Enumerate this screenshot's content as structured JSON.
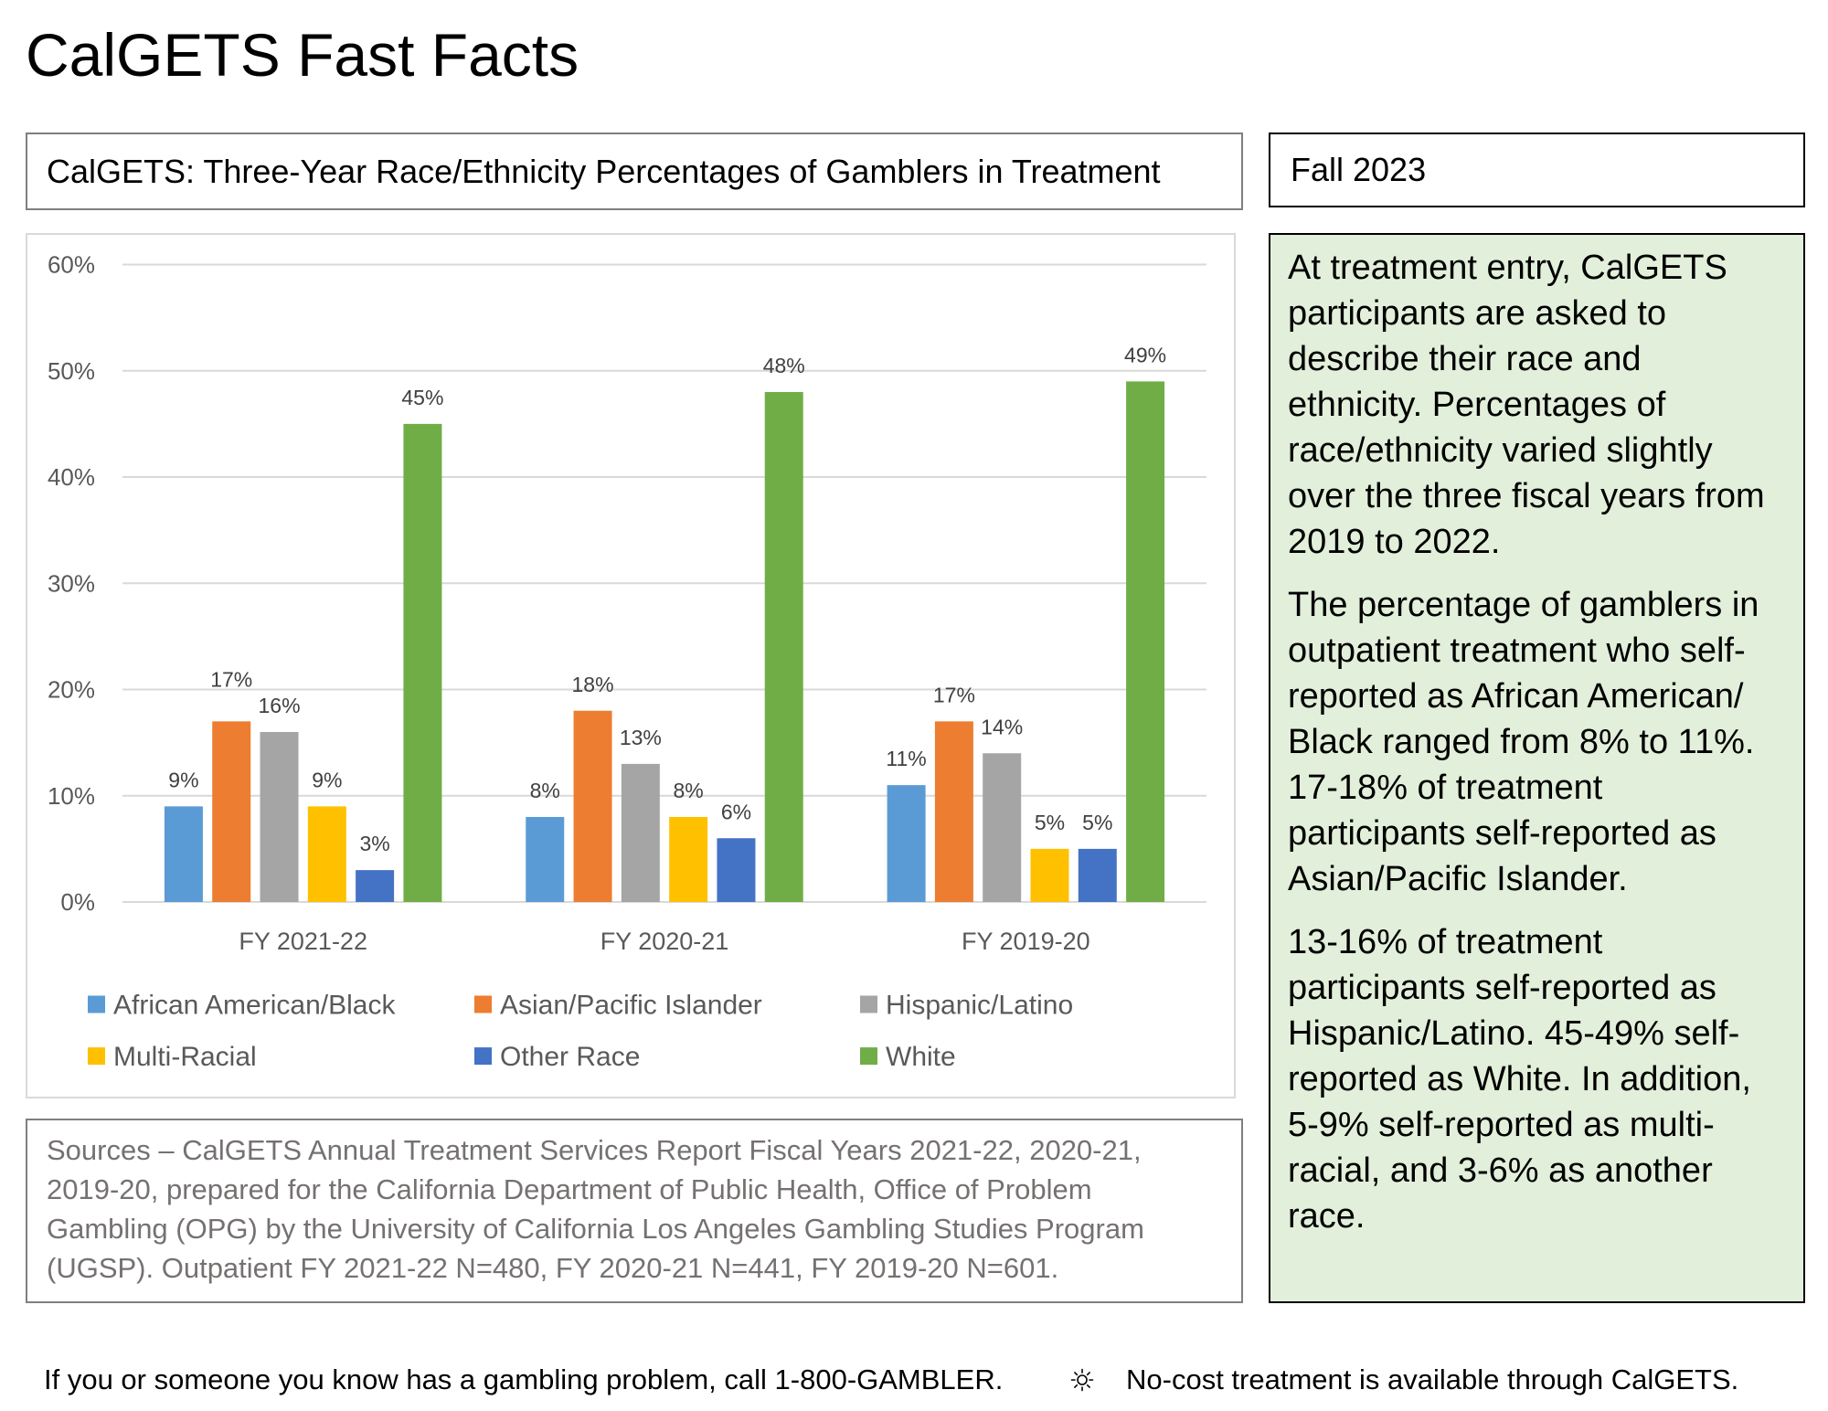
{
  "page": {
    "title": "CalGETS Fast Facts"
  },
  "date_box": {
    "label": "Fall 2023"
  },
  "chart_data": {
    "type": "bar",
    "title": "CalGETS: Three-Year Race/Ethnicity Percentages of Gamblers in Treatment",
    "categories": [
      "FY 2021-22",
      "FY 2020-21",
      "FY 2019-20"
    ],
    "series": [
      {
        "name": "African American/Black",
        "color": "#5B9BD5",
        "values": [
          9,
          8,
          11
        ]
      },
      {
        "name": "Asian/Pacific Islander",
        "color": "#ED7D31",
        "values": [
          17,
          18,
          17
        ]
      },
      {
        "name": "Hispanic/Latino",
        "color": "#A5A5A5",
        "values": [
          16,
          13,
          14
        ]
      },
      {
        "name": "Multi-Racial",
        "color": "#FFC000",
        "values": [
          9,
          8,
          5
        ]
      },
      {
        "name": "Other Race",
        "color": "#4472C4",
        "values": [
          3,
          6,
          5
        ]
      },
      {
        "name": "White",
        "color": "#70AD47",
        "values": [
          45,
          48,
          49
        ]
      }
    ],
    "ylim": [
      0,
      60
    ],
    "yticks": [
      0,
      10,
      20,
      30,
      40,
      50,
      60
    ],
    "ytick_labels": [
      "0%",
      "10%",
      "20%",
      "30%",
      "40%",
      "50%",
      "60%"
    ],
    "data_label_suffix": "%",
    "grid": true,
    "legend_position": "bottom"
  },
  "summary": {
    "paragraphs": [
      [
        "At treatment entry, CalGETS",
        "participants are asked to",
        "describe their race and",
        "ethnicity. Percentages of",
        "race/ethnicity varied slightly",
        "over the three fiscal years from",
        "2019 to 2022."
      ],
      [
        "The percentage of gamblers in",
        "outpatient treatment who self-",
        "reported as African American/",
        "Black ranged from 8% to 11%.",
        "17-18% of treatment",
        "participants self-reported as",
        "Asian/Pacific Islander."
      ],
      [
        "13-16% of treatment",
        "participants self-reported as",
        "Hispanic/Latino. 45-49% self-",
        "reported as White. In addition,",
        "5-9% self-reported as multi-",
        "racial, and 3-6% as another",
        "race."
      ]
    ]
  },
  "sources": {
    "lines": [
      "Sources – CalGETS Annual Treatment Services Report Fiscal Years 2021-22, 2020-21,",
      "2019-20, prepared for the California Department of Public Health, Office of Problem",
      "Gambling (OPG) by the University of California Los Angeles Gambling Studies Program",
      "(UGSP). Outpatient FY 2021-22 N=480, FY 2020-21 N=441, FY 2019-20 N=601."
    ]
  },
  "footer": {
    "helpline": "If you or someone you know has a gambling problem, call 1-800-GAMBLER.",
    "separator_icon": "sun-icon",
    "treatment": "No-cost treatment is available through CalGETS."
  }
}
